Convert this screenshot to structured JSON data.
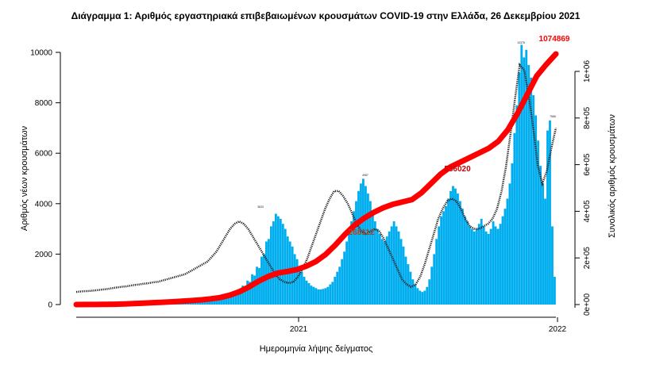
{
  "chart_data": {
    "type": "bar",
    "title": "Διάγραμμα 1: Αριθμός εργαστηριακά επιβεβαιωμένων κρουσμάτων COVID-19 στην Ελλάδα, 26 Δεκεμβρίου 2021",
    "xlabel": "Ημερομηνία λήψης δείγματος",
    "ylabel": "Αριθμός νέων κρουσμάτων",
    "y2label": "Συνολικός αριθμός κρουσμάτων",
    "x_ticks": [
      "2021",
      "2022"
    ],
    "y_ticks": [
      "0",
      "2000",
      "4000",
      "6000",
      "8000",
      "10000"
    ],
    "y2_ticks": [
      "0e+00",
      "2e+05",
      "4e+05",
      "6e+05",
      "8e+05",
      "1e+06"
    ],
    "ylim": [
      0,
      10500
    ],
    "y2lim": [
      0,
      1150000
    ],
    "grid": false,
    "colors": {
      "bars": "#00aeef",
      "cumulative": "#ff0000",
      "moving_average": "#222222"
    },
    "series": [
      {
        "kind": "bar",
        "values": [
          2,
          2,
          3,
          2,
          4,
          3,
          5,
          4,
          6,
          5,
          8,
          6,
          10,
          9,
          12,
          11,
          15,
          13,
          18,
          16,
          20,
          18,
          22,
          20,
          25,
          22,
          28,
          25,
          30,
          28,
          35,
          30,
          40,
          38,
          45,
          42,
          50,
          48,
          60,
          55,
          70,
          65,
          80,
          75,
          95,
          90,
          110,
          105,
          130,
          125,
          150,
          140,
          170,
          160,
          200,
          190,
          230,
          220,
          260,
          250,
          300,
          290,
          350,
          330,
          420,
          400,
          500,
          480,
          600,
          560,
          750,
          700,
          950,
          900,
          1200,
          1150,
          1500,
          1450,
          1900,
          2000,
          2500,
          2600,
          3100,
          3300,
          3600,
          3500,
          3400,
          3200,
          3000,
          2700,
          2500,
          2300,
          2000,
          1800,
          1500,
          1300,
          1100,
          950,
          850,
          750,
          700,
          650,
          600,
          600,
          620,
          650,
          700,
          800,
          900,
          1100,
          1300,
          1500,
          1800,
          2100,
          2500,
          2900,
          3300,
          3700,
          4100,
          4500,
          4800,
          4987,
          4700,
          4400,
          4100,
          3700,
          3300,
          3000,
          2800,
          2600,
          2500,
          2700,
          2900,
          3100,
          3300,
          3100,
          2900,
          2600,
          2300,
          1900,
          1600,
          1300,
          1000,
          800,
          650,
          550,
          500,
          550,
          700,
          1000,
          1500,
          2000,
          2600,
          3100,
          3500,
          3700,
          3900,
          4200,
          4500,
          4700,
          4600,
          4400,
          4100,
          3800,
          3500,
          3300,
          3100,
          3000,
          2900,
          3000,
          3200,
          3400,
          3100,
          2900,
          2800,
          3000,
          3300,
          3100,
          3000,
          3200,
          3500,
          3800,
          4200,
          4800,
          5600,
          6800,
          7900,
          9200,
          10300,
          9800,
          10100,
          9500,
          9000,
          8300,
          7500,
          6500,
          5500,
          4800,
          4200,
          6900,
          7300,
          3100,
          1100
        ],
        "labels_visible": [
          "10378",
          "7566",
          "4987",
          "3633"
        ]
      },
      {
        "kind": "line",
        "values": [
          500,
          520,
          530,
          540,
          560,
          580,
          600,
          620,
          650,
          680,
          700,
          720,
          750,
          780,
          800,
          830,
          850,
          880,
          900,
          950,
          1000,
          1050,
          1100,
          1150,
          1200,
          1300,
          1400,
          1500,
          1600,
          1700,
          1900,
          2100,
          2400,
          2700,
          3000,
          3200,
          3300,
          3200,
          3000,
          2700,
          2400,
          2100,
          1800,
          1500,
          1200,
          1000,
          900,
          850,
          900,
          1100,
          1400,
          1800,
          2300,
          2800,
          3300,
          3800,
          4200,
          4500,
          4500,
          4300,
          4000,
          3600,
          3200,
          2900,
          2800,
          2900,
          3000,
          2900,
          2600,
          2200,
          1800,
          1400,
          1000,
          800,
          700,
          800,
          1100,
          1600,
          2200,
          2800,
          3400,
          3800,
          4100,
          4200,
          4100,
          3800,
          3400,
          3100,
          3000,
          3000,
          3100,
          3200,
          3400,
          3800,
          4500,
          5500,
          6800,
          8200,
          9500,
          9300,
          8300,
          7000,
          5500,
          4800,
          5300,
          6200,
          7000
        ]
      },
      {
        "kind": "cumulative",
        "values": [
          0,
          200,
          500,
          900,
          1500,
          2500,
          4000,
          6000,
          8000,
          10000,
          12000,
          14500,
          17000,
          20000,
          24000,
          30000,
          40000,
          55000,
          75000,
          100000,
          120000,
          135000,
          142000,
          150000,
          165000,
          185000,
          215000,
          255000,
          300000,
          340000,
          370000,
          395000,
          415000,
          430000,
          440000,
          450000,
          480000,
          520000,
          560000,
          590000,
          610000,
          630000,
          650000,
          670000,
          700000,
          750000,
          820000,
          900000,
          980000,
          1030000,
          1074869
        ],
        "annotations": [
          "268112",
          "536020",
          "1074869"
        ]
      }
    ]
  }
}
